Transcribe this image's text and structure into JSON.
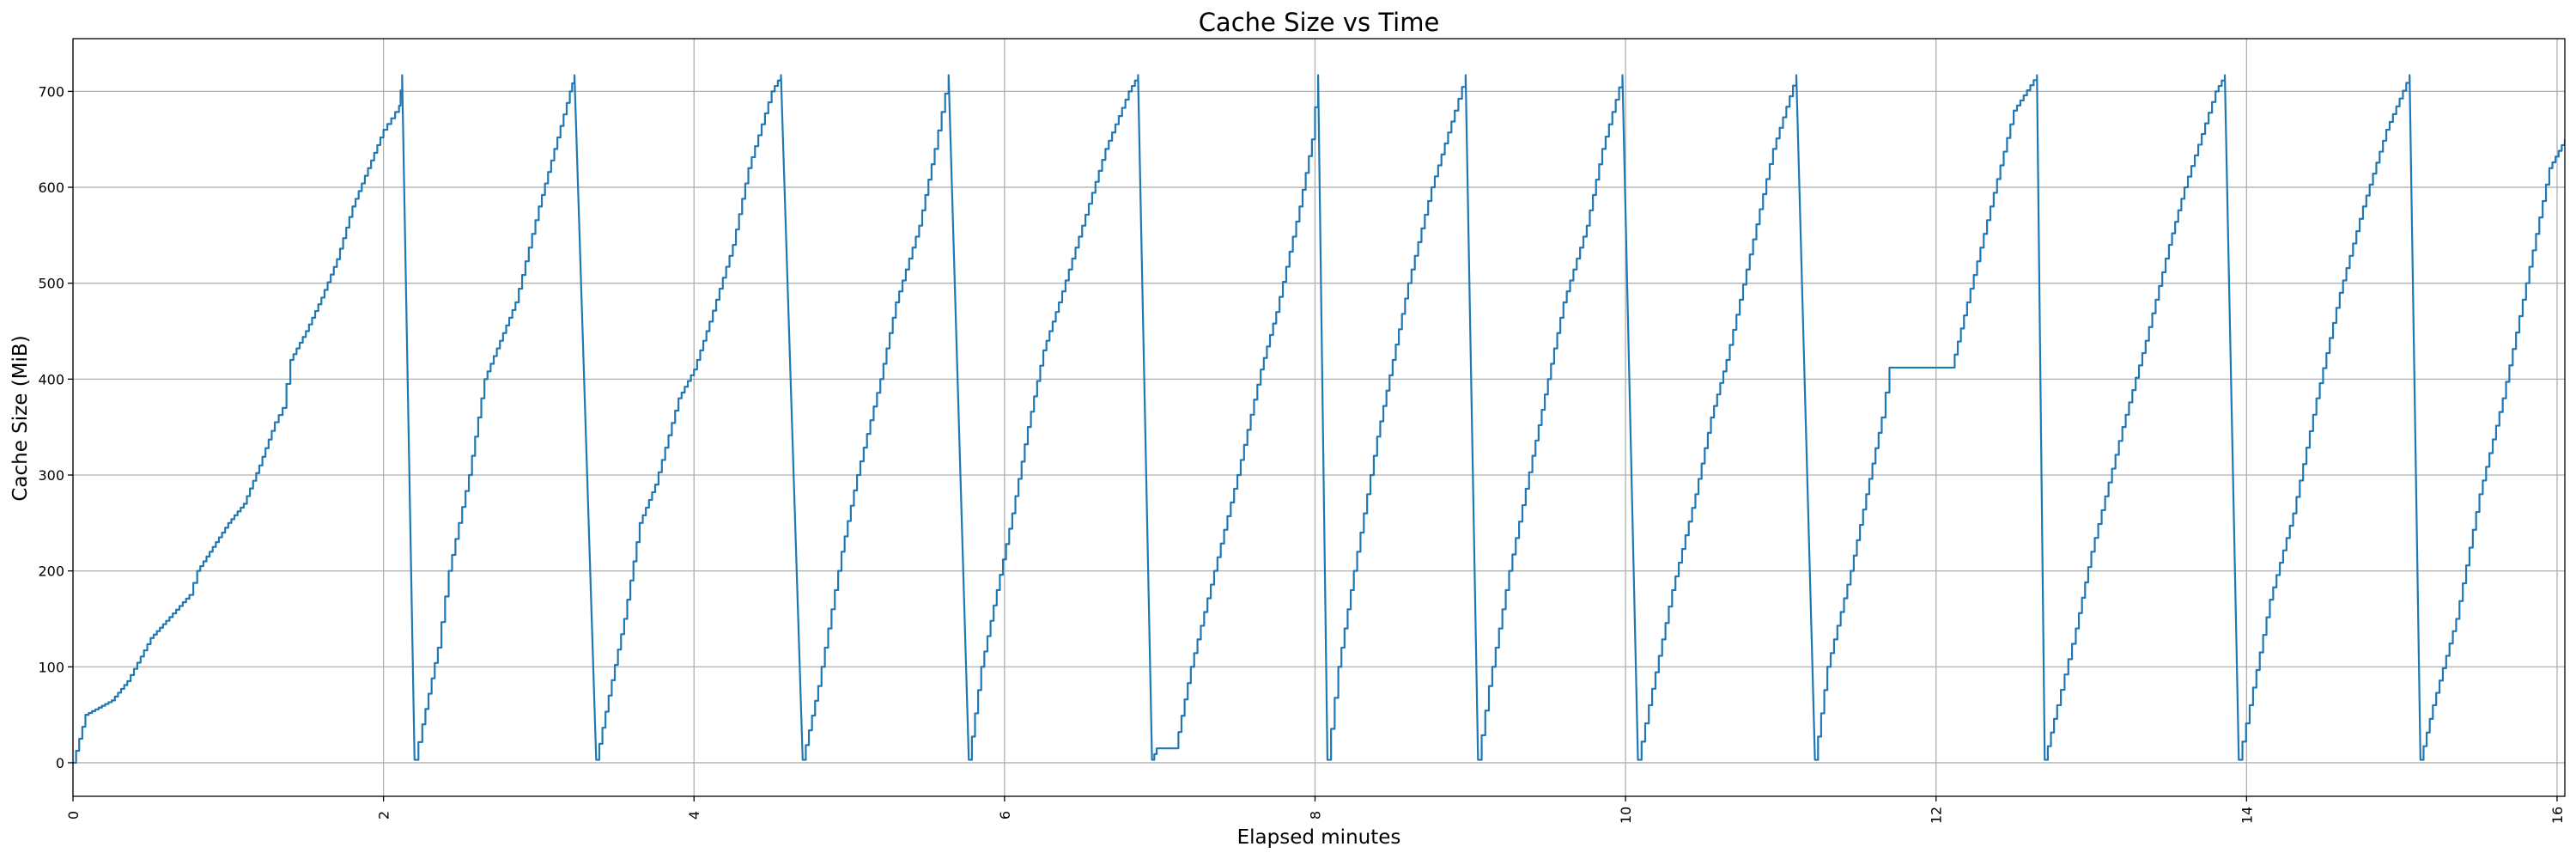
{
  "chart_data": {
    "type": "line",
    "title": "Cache Size vs Time",
    "xlabel": "Elapsed minutes",
    "ylabel": "Cache Size (MiB)",
    "xlim": [
      0,
      16.05
    ],
    "ylim": [
      -35,
      755
    ],
    "xticks": [
      0,
      2,
      4,
      6,
      8,
      10,
      12,
      14,
      16
    ],
    "xtick_labels": [
      "0",
      "2",
      "4",
      "6",
      "8",
      "10",
      "12",
      "14",
      "16"
    ],
    "yticks": [
      0,
      100,
      200,
      300,
      400,
      500,
      600,
      700
    ],
    "ytick_labels": [
      "0",
      "100",
      "200",
      "300",
      "400",
      "500",
      "600",
      "700"
    ],
    "grid": true,
    "series_color": "#1f77b4",
    "series": [
      {
        "values": [
          [
            0,
            0
          ],
          [
            0.08,
            50
          ],
          [
            0.25,
            65
          ],
          [
            0.35,
            85
          ],
          [
            0.5,
            130
          ],
          [
            0.6,
            148
          ],
          [
            0.75,
            175
          ],
          [
            0.8,
            200
          ],
          [
            0.9,
            225
          ],
          [
            1.0,
            250
          ],
          [
            1.1,
            270
          ],
          [
            1.2,
            310
          ],
          [
            1.3,
            355
          ],
          [
            1.35,
            370
          ],
          [
            1.4,
            420
          ],
          [
            1.5,
            450
          ],
          [
            1.6,
            485
          ],
          [
            1.7,
            525
          ],
          [
            1.8,
            580
          ],
          [
            1.9,
            620
          ],
          [
            2.0,
            660
          ],
          [
            2.05,
            672
          ],
          [
            2.1,
            685
          ],
          [
            2.12,
            717
          ],
          [
            2.2,
            3
          ],
          [
            2.25,
            40
          ],
          [
            2.35,
            120
          ],
          [
            2.42,
            200
          ],
          [
            2.55,
            300
          ],
          [
            2.65,
            400
          ],
          [
            2.75,
            440
          ],
          [
            2.85,
            480
          ],
          [
            3.0,
            580
          ],
          [
            3.1,
            640
          ],
          [
            3.2,
            700
          ],
          [
            3.23,
            717
          ],
          [
            3.37,
            3
          ],
          [
            3.45,
            70
          ],
          [
            3.55,
            150
          ],
          [
            3.65,
            250
          ],
          [
            3.75,
            290
          ],
          [
            3.9,
            380
          ],
          [
            4.0,
            410
          ],
          [
            4.1,
            460
          ],
          [
            4.25,
            540
          ],
          [
            4.35,
            620
          ],
          [
            4.5,
            700
          ],
          [
            4.56,
            717
          ],
          [
            4.7,
            3
          ],
          [
            4.8,
            80
          ],
          [
            4.95,
            220
          ],
          [
            5.05,
            300
          ],
          [
            5.2,
            400
          ],
          [
            5.3,
            480
          ],
          [
            5.45,
            560
          ],
          [
            5.55,
            640
          ],
          [
            5.64,
            717
          ],
          [
            5.77,
            3
          ],
          [
            5.85,
            100
          ],
          [
            5.95,
            180
          ],
          [
            6.05,
            260
          ],
          [
            6.15,
            350
          ],
          [
            6.25,
            430
          ],
          [
            6.35,
            480
          ],
          [
            6.5,
            560
          ],
          [
            6.65,
            640
          ],
          [
            6.8,
            700
          ],
          [
            6.86,
            717
          ],
          [
            6.95,
            3
          ],
          [
            6.98,
            15
          ],
          [
            7.1,
            15
          ],
          [
            7.2,
            100
          ],
          [
            7.35,
            200
          ],
          [
            7.5,
            300
          ],
          [
            7.65,
            410
          ],
          [
            7.75,
            470
          ],
          [
            7.9,
            580
          ],
          [
            7.98,
            650
          ],
          [
            8.02,
            717
          ],
          [
            8.08,
            3
          ],
          [
            8.15,
            100
          ],
          [
            8.25,
            200
          ],
          [
            8.4,
            340
          ],
          [
            8.5,
            420
          ],
          [
            8.6,
            500
          ],
          [
            8.75,
            600
          ],
          [
            8.9,
            680
          ],
          [
            8.97,
            717
          ],
          [
            9.05,
            3
          ],
          [
            9.12,
            80
          ],
          [
            9.25,
            200
          ],
          [
            9.4,
            320
          ],
          [
            9.5,
            400
          ],
          [
            9.6,
            480
          ],
          [
            9.75,
            560
          ],
          [
            9.85,
            640
          ],
          [
            9.98,
            717
          ],
          [
            10.08,
            3
          ],
          [
            10.15,
            60
          ],
          [
            10.3,
            180
          ],
          [
            10.45,
            280
          ],
          [
            10.55,
            360
          ],
          [
            10.65,
            420
          ],
          [
            10.8,
            530
          ],
          [
            10.95,
            640
          ],
          [
            11.1,
            717
          ],
          [
            11.22,
            3
          ],
          [
            11.3,
            100
          ],
          [
            11.45,
            200
          ],
          [
            11.55,
            280
          ],
          [
            11.65,
            360
          ],
          [
            11.7,
            412
          ],
          [
            12.1,
            412
          ],
          [
            12.2,
            480
          ],
          [
            12.35,
            580
          ],
          [
            12.5,
            680
          ],
          [
            12.65,
            717
          ],
          [
            12.7,
            3
          ],
          [
            12.78,
            60
          ],
          [
            12.9,
            140
          ],
          [
            13.0,
            220
          ],
          [
            13.2,
            350
          ],
          [
            13.35,
            440
          ],
          [
            13.5,
            540
          ],
          [
            13.6,
            600
          ],
          [
            13.8,
            700
          ],
          [
            13.86,
            717
          ],
          [
            13.95,
            3
          ],
          [
            14.02,
            60
          ],
          [
            14.15,
            170
          ],
          [
            14.3,
            260
          ],
          [
            14.45,
            380
          ],
          [
            14.6,
            490
          ],
          [
            14.75,
            580
          ],
          [
            14.9,
            660
          ],
          [
            15.05,
            717
          ],
          [
            15.12,
            3
          ],
          [
            15.2,
            60
          ],
          [
            15.35,
            150
          ],
          [
            15.5,
            280
          ],
          [
            15.65,
            380
          ],
          [
            15.8,
            500
          ],
          [
            15.95,
            620
          ],
          [
            16.05,
            650
          ]
        ]
      }
    ]
  }
}
